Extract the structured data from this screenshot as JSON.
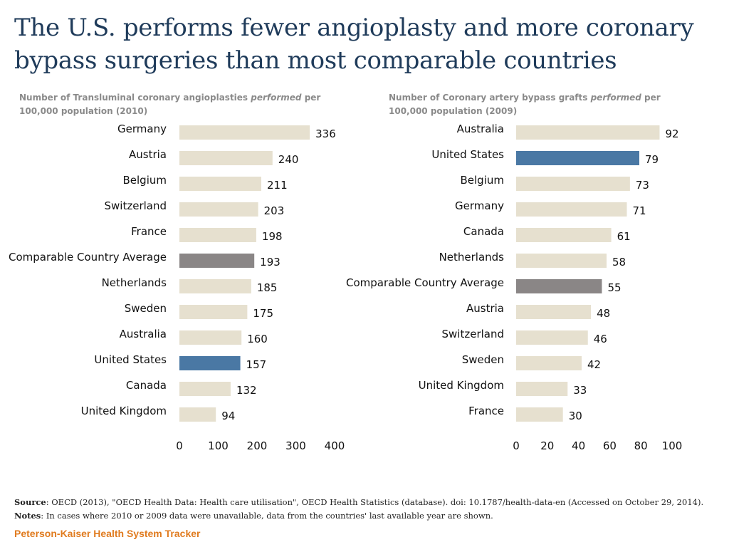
{
  "title": "The U.S. performs fewer angioplasty and more coronary bypass surgeries than most comparable countries",
  "colors": {
    "default_bar": "#e6e0cf",
    "us_bar": "#4a78a4",
    "average_bar": "#8a8686",
    "title": "#1f3b5a",
    "brand": "#e07b1f"
  },
  "chart_data": [
    {
      "type": "bar",
      "orientation": "horizontal",
      "subtitle_before": "Number of Transluminal coronary angioplasties ",
      "subtitle_em": "performed",
      "subtitle_after": " per 100,000 population (2010)",
      "categories": [
        "Germany",
        "Austria",
        "Belgium",
        "Switzerland",
        "France",
        "Comparable Country Average",
        "Netherlands",
        "Sweden",
        "Australia",
        "United States",
        "Canada",
        "United Kingdom"
      ],
      "values": [
        336,
        240,
        211,
        203,
        198,
        193,
        185,
        175,
        160,
        157,
        132,
        94
      ],
      "highlight": {
        "United States": "us",
        "Comparable Country Average": "average"
      },
      "xlim": [
        0,
        400
      ],
      "xticks": [
        "0",
        "100",
        "200",
        "300",
        "400"
      ],
      "xtick_values": [
        0,
        100,
        200,
        300,
        400
      ]
    },
    {
      "type": "bar",
      "orientation": "horizontal",
      "subtitle_before": "Number of Coronary artery bypass grafts ",
      "subtitle_em": "performed",
      "subtitle_after": "  per 100,000 population (2009)",
      "categories": [
        "Australia",
        "United States",
        "Belgium",
        "Germany",
        "Canada",
        "Netherlands",
        "Comparable Country Average",
        "Austria",
        "Switzerland",
        "Sweden",
        "United Kingdom",
        "France"
      ],
      "values": [
        92,
        79,
        73,
        71,
        61,
        58,
        55,
        48,
        46,
        42,
        33,
        30
      ],
      "highlight": {
        "United States": "us",
        "Comparable Country Average": "average"
      },
      "xlim": [
        0,
        100
      ],
      "xticks": [
        "0",
        "20",
        "40",
        "60",
        "80",
        "100"
      ],
      "xtick_values": [
        0,
        20,
        40,
        60,
        80,
        100
      ]
    }
  ],
  "footer": {
    "source_label": "Source",
    "source_text": ": OECD (2013), \"OECD Health Data: Health care utilisation\", OECD Health Statistics (database).  doi: 10.1787/health-data-en (Accessed on October 29, 2014). ",
    "notes_label": "Notes",
    "notes_text": ": In cases where 2010  or 2009 data were unavailable, data from the countries' last available year are shown."
  },
  "brand": "Peterson-Kaiser Health System Tracker"
}
